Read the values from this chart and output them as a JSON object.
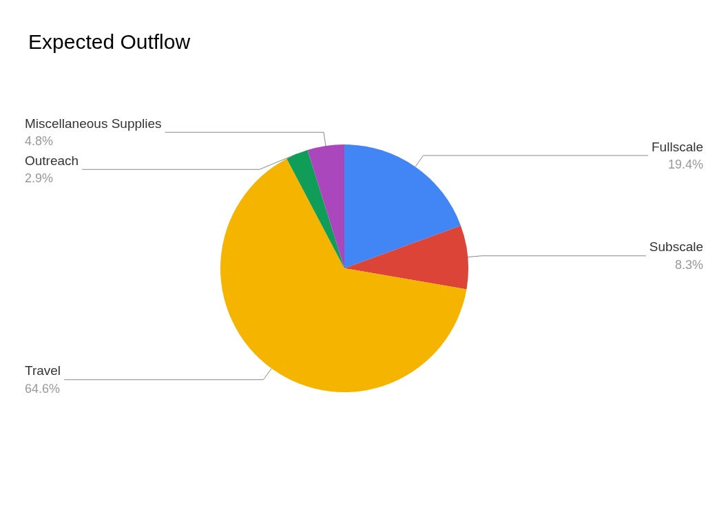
{
  "chart_data": {
    "type": "pie",
    "title": "Expected Outflow",
    "categories": [
      "Fullscale",
      "Subscale",
      "Travel",
      "Outreach",
      "Miscellaneous Supplies"
    ],
    "values": [
      19.4,
      8.3,
      64.6,
      2.9,
      4.8
    ],
    "colors": [
      "#4285f4",
      "#db4437",
      "#f4b400",
      "#0f9d58",
      "#ab47bc"
    ],
    "value_labels": [
      "19.4%",
      "8.3%",
      "64.6%",
      "2.9%",
      "4.8%"
    ],
    "legend": false
  }
}
